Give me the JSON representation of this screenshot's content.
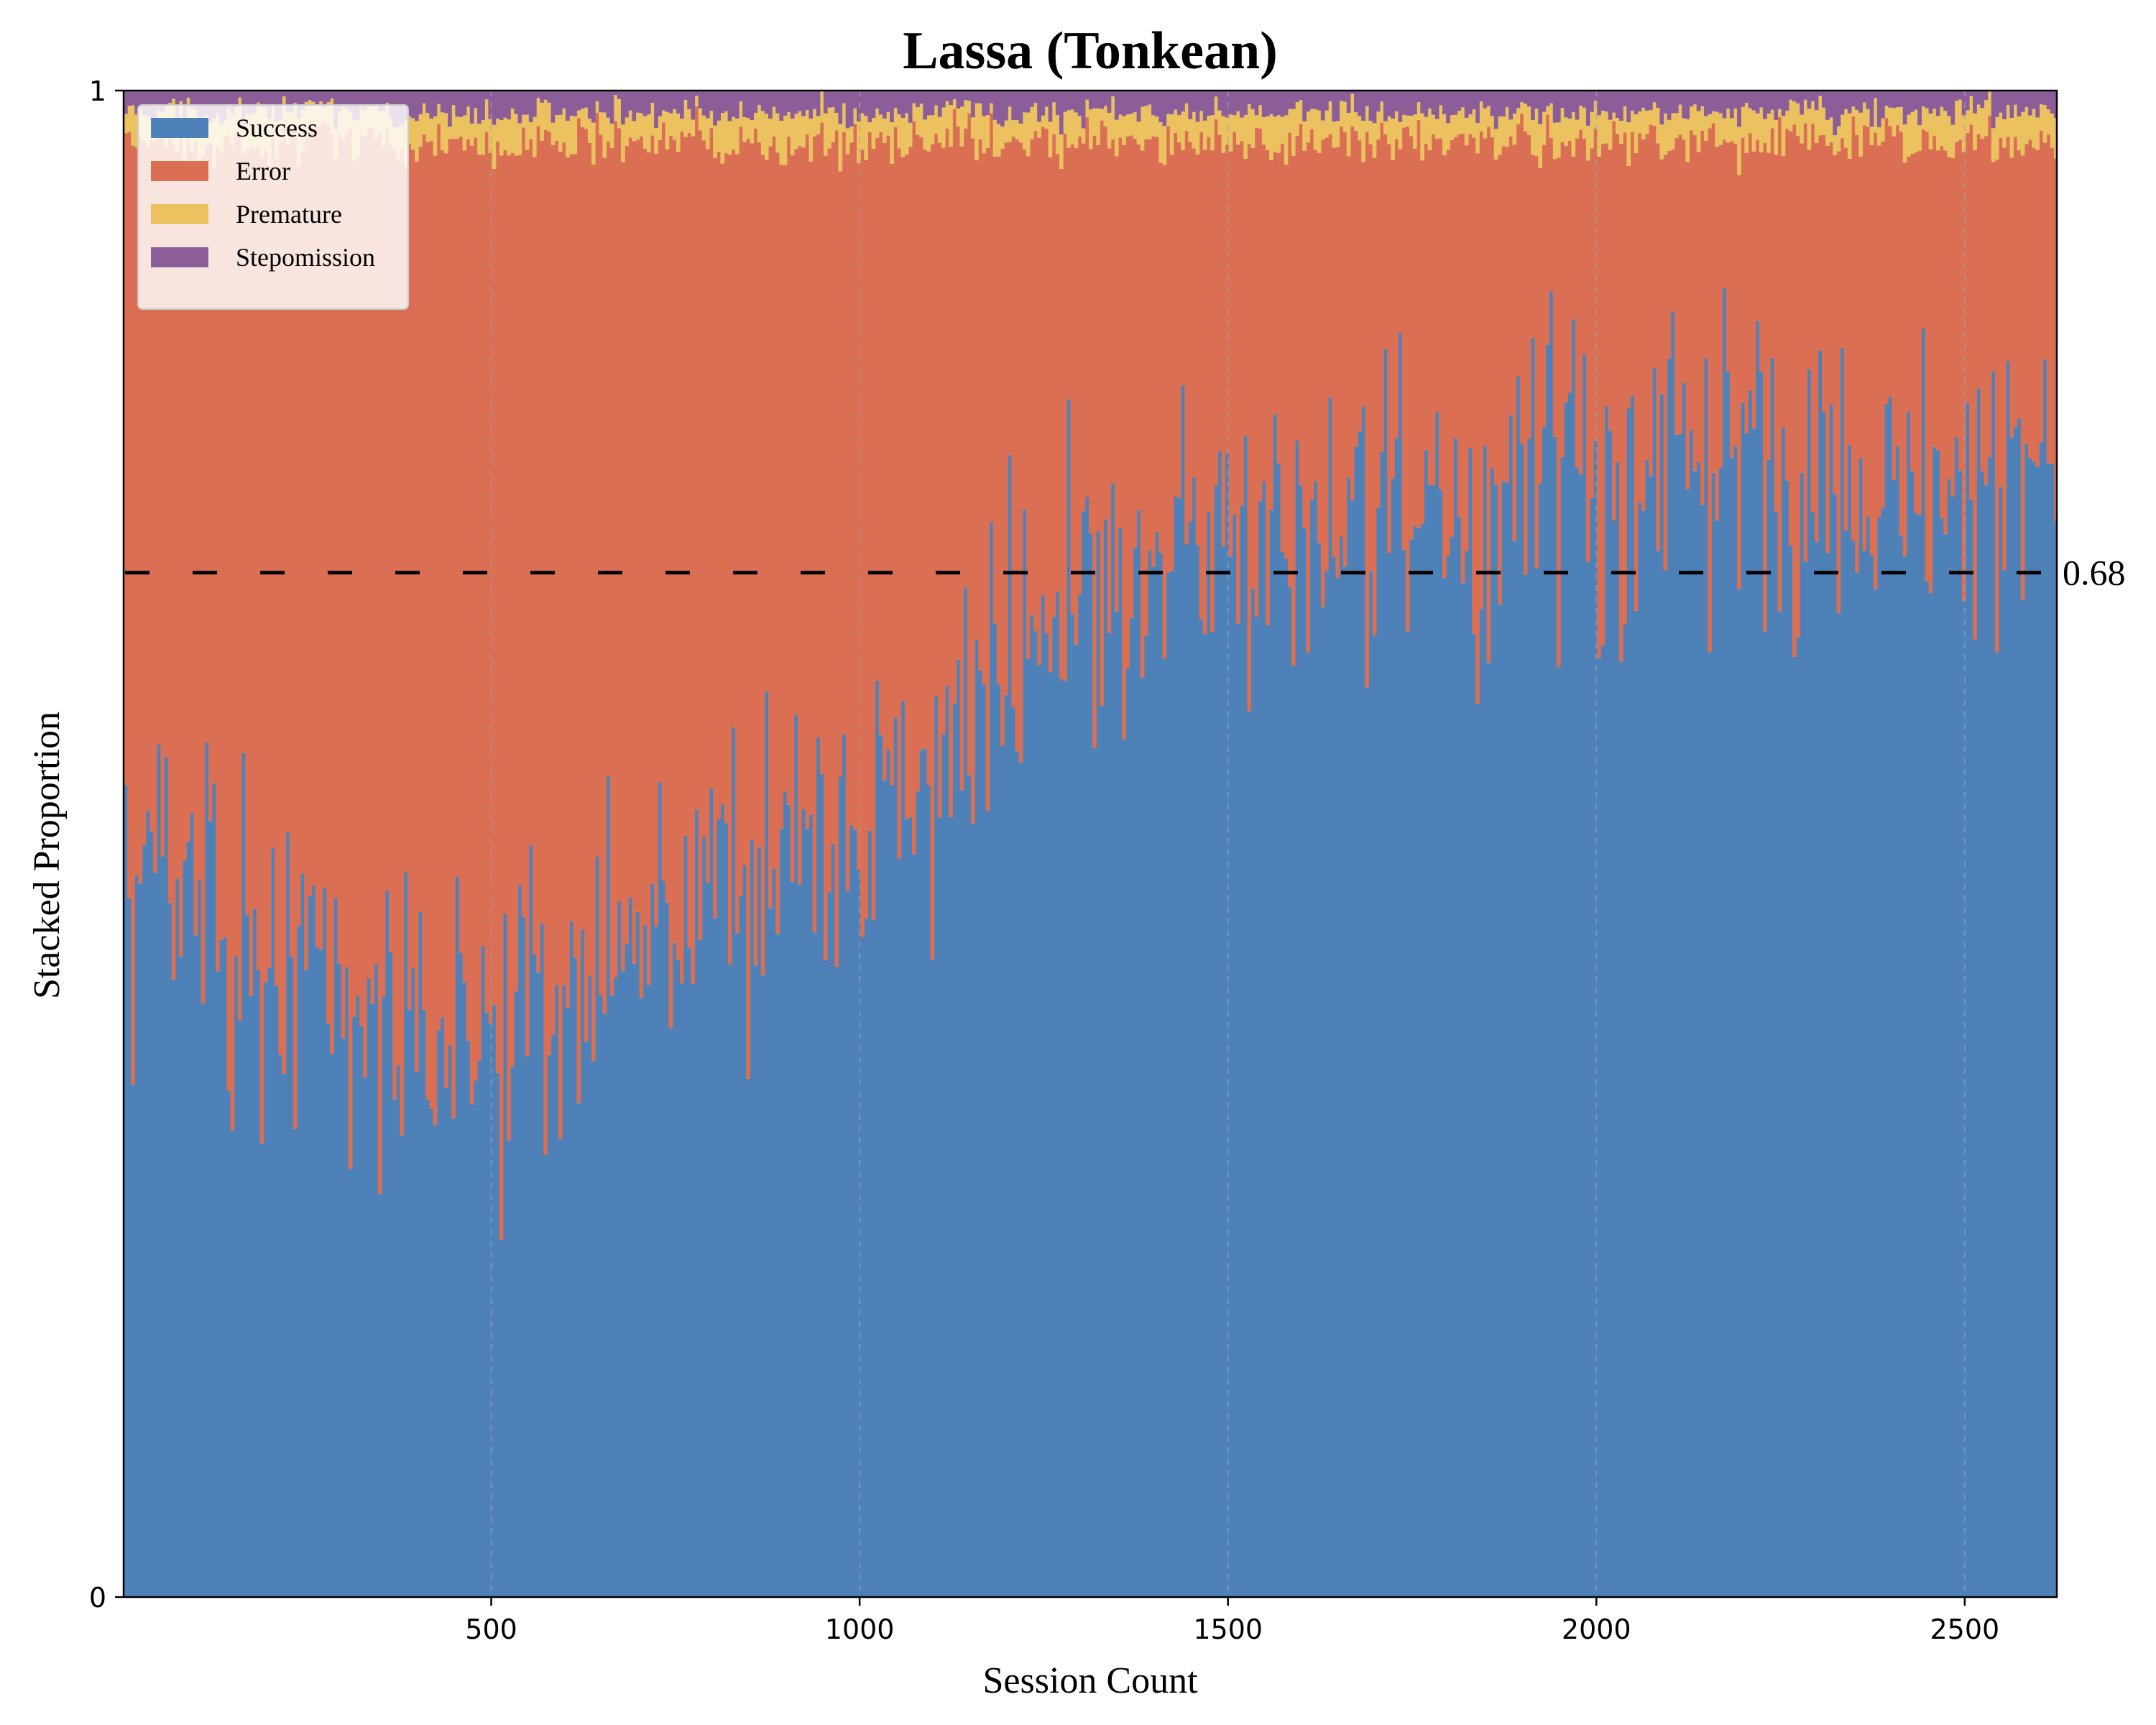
{
  "chart_data": {
    "type": "area",
    "stacked": true,
    "title": "Lassa (Tonkean)",
    "xlabel": "Session Count",
    "ylabel": "Stacked Proportion",
    "xlim": [
      1,
      2625
    ],
    "ylim": [
      0,
      1
    ],
    "xticks": [
      500,
      1000,
      1500,
      2000,
      2500
    ],
    "yticks": [
      0,
      1
    ],
    "xgrid": "dashed vertical lines at 500-session intervals",
    "legend": {
      "position": "top-left"
    },
    "series": [
      {
        "name": "Success",
        "color": "#4E81B8"
      },
      {
        "name": "Error",
        "color": "#DA6F54"
      },
      {
        "name": "Premature",
        "color": "#ECC15F"
      },
      {
        "name": "Stepomission",
        "color": "#8C5E99"
      }
    ],
    "success_trend": {
      "x": [
        1,
        100,
        200,
        300,
        400,
        500,
        600,
        700,
        800,
        900,
        1000,
        1100,
        1150,
        1200,
        1300,
        1400,
        1500,
        1600,
        1700,
        1800,
        1900,
        2000,
        2100,
        2200,
        2300,
        2400,
        2500,
        2625
      ],
      "y": [
        0.48,
        0.46,
        0.44,
        0.38,
        0.37,
        0.36,
        0.4,
        0.44,
        0.47,
        0.5,
        0.5,
        0.55,
        0.58,
        0.62,
        0.68,
        0.68,
        0.7,
        0.7,
        0.71,
        0.72,
        0.73,
        0.74,
        0.74,
        0.76,
        0.75,
        0.74,
        0.75,
        0.74
      ]
    },
    "premature_mean": 0.02,
    "stepomission_mean": 0.015,
    "reference_line": {
      "y": 0.68,
      "label": "0.68",
      "style": "dashed"
    }
  }
}
